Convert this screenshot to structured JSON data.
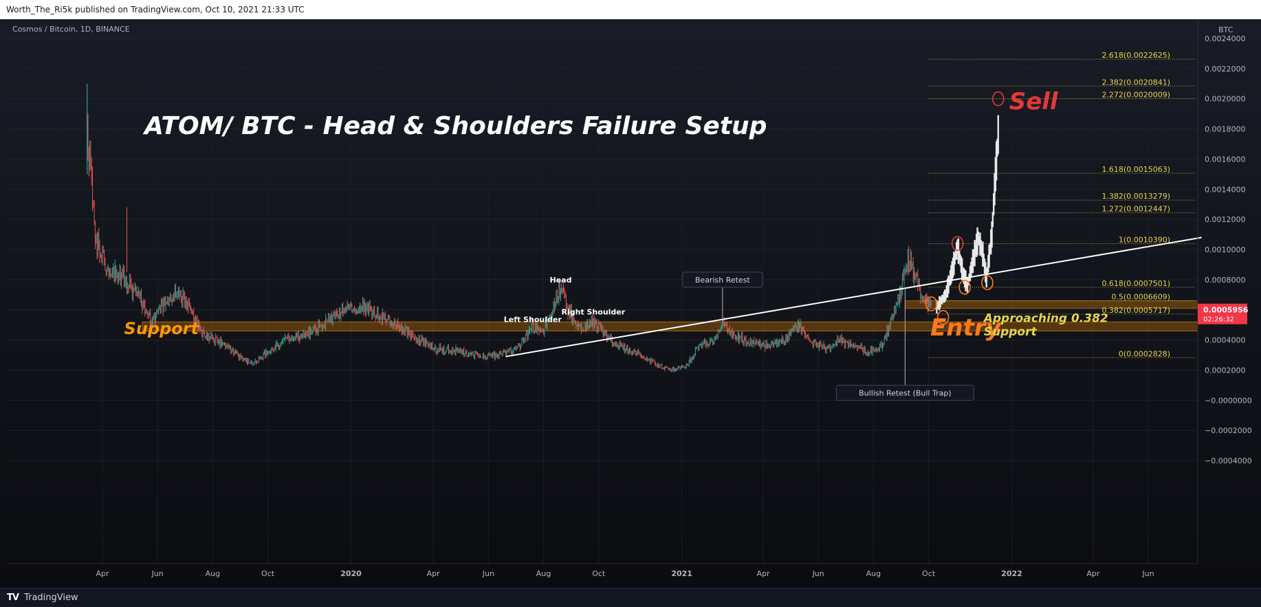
{
  "header": {
    "text": "Worth_The_Ri5k published on TradingView.com, Oct 10, 2021 21:33 UTC"
  },
  "symbol_label": "Cosmos / Bitcoin, 1D, BINANCE",
  "footer": {
    "brand": "TradingView",
    "logo": "TV"
  },
  "colors": {
    "bg": "#131722",
    "up": "#26a69a",
    "down": "#ef5350",
    "fib": "#e8d44a",
    "support": "#ff9800",
    "entry": "#ff7a1a",
    "sell": "#e53935"
  },
  "chart_data": {
    "type": "candlestick",
    "title": "ATOM/ BTC - Head & Shoulders Failure Setup",
    "price_axis_unit": "BTC",
    "price_ticks": [
      0.0024,
      0.0022,
      0.002,
      0.0018,
      0.0016,
      0.0014,
      0.0012,
      0.001,
      0.0008,
      0.0006,
      0.0004,
      0.0002,
      -0.0,
      -0.0002,
      -0.0004
    ],
    "price_tick_labels": [
      "0.0024000",
      "0.0022000",
      "0.0020000",
      "0.0018000",
      "0.0016000",
      "0.0014000",
      "0.0012000",
      "0.0010000",
      "0.0008000",
      "0.0006000",
      "0.0004000",
      "0.0002000",
      "−0.0000000",
      "−0.0002000",
      "−0.0004000"
    ],
    "time_labels": [
      "Apr",
      "Jun",
      "Aug",
      "Oct",
      "2020",
      "Apr",
      "Jun",
      "Aug",
      "Oct",
      "2021",
      "Apr",
      "Jun",
      "Aug",
      "Oct",
      "2022",
      "Apr",
      "Jun"
    ],
    "time_label_dates": [
      "2019-04-01",
      "2019-06-01",
      "2019-08-01",
      "2019-10-01",
      "2020-01-01",
      "2020-04-01",
      "2020-06-01",
      "2020-08-01",
      "2020-10-01",
      "2021-01-01",
      "2021-04-01",
      "2021-06-01",
      "2021-08-01",
      "2021-10-01",
      "2022-01-01",
      "2022-04-01",
      "2022-06-01"
    ],
    "ohlc_path": [
      [
        "2019-03-15",
        0.00175
      ],
      [
        "2019-03-25",
        0.00105
      ],
      [
        "2019-04-05",
        0.0009
      ],
      [
        "2019-04-25",
        0.00082
      ],
      [
        "2019-05-15",
        0.00065
      ],
      [
        "2019-05-25",
        0.00052
      ],
      [
        "2019-06-05",
        0.00062
      ],
      [
        "2019-06-25",
        0.00072
      ],
      [
        "2019-07-08",
        0.00058
      ],
      [
        "2019-07-20",
        0.00045
      ],
      [
        "2019-08-10",
        0.00038
      ],
      [
        "2019-09-01",
        0.00028
      ],
      [
        "2019-09-15",
        0.00024
      ],
      [
        "2019-10-01",
        0.00032
      ],
      [
        "2019-10-20",
        0.0004
      ],
      [
        "2019-11-10",
        0.00043
      ],
      [
        "2019-12-01",
        0.0005
      ],
      [
        "2019-12-25",
        0.0006
      ],
      [
        "2020-01-15",
        0.00062
      ],
      [
        "2020-02-01",
        0.00056
      ],
      [
        "2020-02-20",
        0.0005
      ],
      [
        "2020-03-15",
        0.0004
      ],
      [
        "2020-04-05",
        0.00034
      ],
      [
        "2020-04-25",
        0.00033
      ],
      [
        "2020-05-15",
        0.0003
      ],
      [
        "2020-06-01",
        0.00029
      ],
      [
        "2020-06-20",
        0.00031
      ],
      [
        "2020-07-05",
        0.00035
      ],
      [
        "2020-07-20",
        0.0005
      ],
      [
        "2020-07-30",
        0.00045
      ],
      [
        "2020-08-10",
        0.00058
      ],
      [
        "2020-08-20",
        0.00075
      ],
      [
        "2020-08-28",
        0.0006
      ],
      [
        "2020-09-10",
        0.00048
      ],
      [
        "2020-09-25",
        0.00052
      ],
      [
        "2020-10-10",
        0.00042
      ],
      [
        "2020-10-25",
        0.00036
      ],
      [
        "2020-11-10",
        0.00032
      ],
      [
        "2020-12-01",
        0.00025
      ],
      [
        "2020-12-20",
        0.0002
      ],
      [
        "2021-01-05",
        0.00022
      ],
      [
        "2021-01-20",
        0.00036
      ],
      [
        "2021-02-05",
        0.0004
      ],
      [
        "2021-02-15",
        0.0005
      ],
      [
        "2021-02-25",
        0.00045
      ],
      [
        "2021-03-15",
        0.00038
      ],
      [
        "2021-04-05",
        0.00036
      ],
      [
        "2021-04-25",
        0.0004
      ],
      [
        "2021-05-10",
        0.0005
      ],
      [
        "2021-05-25",
        0.00038
      ],
      [
        "2021-06-10",
        0.00034
      ],
      [
        "2021-06-25",
        0.0004
      ],
      [
        "2021-07-10",
        0.00037
      ],
      [
        "2021-07-25",
        0.00032
      ],
      [
        "2021-08-10",
        0.00036
      ],
      [
        "2021-08-22",
        0.00055
      ],
      [
        "2021-08-30",
        0.0007
      ],
      [
        "2021-09-08",
        0.00095
      ],
      [
        "2021-09-15",
        0.00082
      ],
      [
        "2021-09-25",
        0.00068
      ],
      [
        "2021-10-05",
        0.0006
      ]
    ],
    "ghost_path": [
      [
        "2021-10-10",
        0.00062
      ],
      [
        "2021-10-20",
        0.0007
      ],
      [
        "2021-10-28",
        0.00088
      ],
      [
        "2021-11-02",
        0.00102
      ],
      [
        "2021-11-08",
        0.00084
      ],
      [
        "2021-11-13",
        0.00076
      ],
      [
        "2021-11-20",
        0.00095
      ],
      [
        "2021-11-25",
        0.00108
      ],
      [
        "2021-11-30",
        0.00097
      ],
      [
        "2021-12-04",
        0.00081
      ],
      [
        "2021-12-10",
        0.0011
      ],
      [
        "2021-12-14",
        0.0015
      ],
      [
        "2021-12-18",
        0.00185
      ]
    ],
    "trendline": {
      "from": [
        "2020-06-20",
        0.00029
      ],
      "to": [
        "2022-07-30",
        0.00108
      ]
    },
    "support_zone": {
      "from": "2019-05-15",
      "low": 0.00046,
      "high": 0.00052
    },
    "small_zone": {
      "from": "2021-09-05",
      "low": 0.00061,
      "high": 0.00066
    },
    "fib_start": "2021-10-01",
    "fib_levels": [
      {
        "label": "2.618(0.0022625)",
        "value": 0.0022625
      },
      {
        "label": "2.382(0.0020841)",
        "value": 0.0020841
      },
      {
        "label": "2.272(0.0020009)",
        "value": 0.0020009
      },
      {
        "label": "1.618(0.0015063)",
        "value": 0.0015063
      },
      {
        "label": "1.382(0.0013279)",
        "value": 0.0013279
      },
      {
        "label": "1.272(0.0012447)",
        "value": 0.0012447
      },
      {
        "label": "1(0.0010390)",
        "value": 0.001039
      },
      {
        "label": "0.618(0.0007501)",
        "value": 0.0007501
      },
      {
        "label": "0.5(0.0006609)",
        "value": 0.0006609
      },
      {
        "label": "0.382(0.0005717)",
        "value": 0.0005717
      },
      {
        "label": "0(0.0002828)",
        "value": 0.0002828
      }
    ],
    "last_price": {
      "label": "0.0005956",
      "value": 0.0005956,
      "countdown": "02:26:32"
    },
    "annotations": [
      {
        "text": "Head",
        "date": "2020-08-20",
        "price": 0.00078
      },
      {
        "text": "Left Shoulder",
        "date": "2020-07-20",
        "price": 0.00052
      },
      {
        "text": "Right Shoulder",
        "date": "2020-09-25",
        "price": 0.00057
      }
    ],
    "callouts": [
      {
        "text": "Bearish Retest",
        "date": "2021-02-15",
        "price": 0.0008,
        "pointer": 0.00052
      },
      {
        "text": "Bullish Retest (Bull Trap)",
        "date": "2021-09-05",
        "price": 5e-05,
        "pointer": 0.00075
      }
    ],
    "labels": {
      "support": {
        "text": "Support",
        "date": "2019-04-25",
        "price": 0.00044
      },
      "entry": {
        "text": "Entry",
        "date": "2021-10-03",
        "price": 0.00043
      },
      "approaching": {
        "text": "Approaching 0.382",
        "date": "2021-12-01",
        "price": 0.00052
      },
      "approaching_sub": {
        "text": "Support",
        "date": "2021-12-01",
        "price": 0.00043
      },
      "sell": {
        "text": "Sell",
        "date": "2021-12-20",
        "price": 0.00193
      }
    },
    "circles": [
      {
        "date": "2021-10-04",
        "price": 0.00064,
        "color": "#ff7a1a"
      },
      {
        "date": "2021-10-17",
        "price": 0.00055,
        "color": "#ff7a1a"
      },
      {
        "date": "2021-11-02",
        "price": 0.00104,
        "color": "#e53935"
      },
      {
        "date": "2021-11-10",
        "price": 0.00075,
        "color": "#ff7a1a"
      },
      {
        "date": "2021-12-05",
        "price": 0.00078,
        "color": "#ff7a1a"
      },
      {
        "date": "2021-12-17",
        "price": 0.002,
        "color": "#e53935"
      }
    ]
  }
}
